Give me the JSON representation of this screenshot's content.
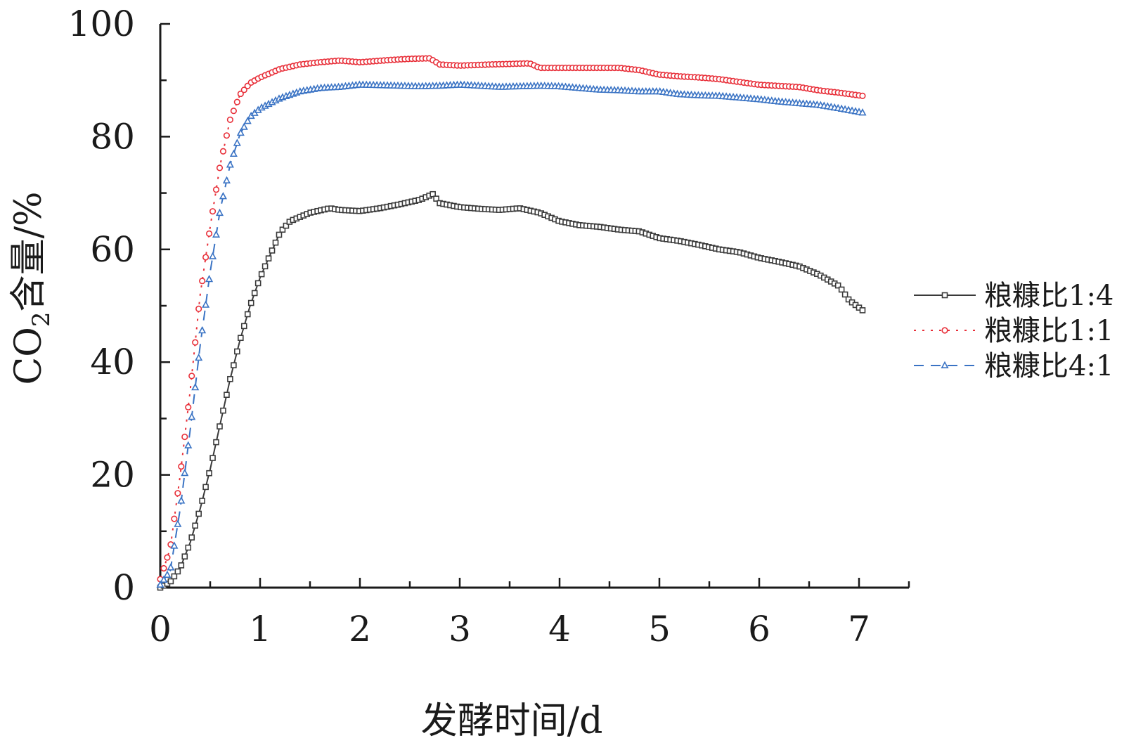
{
  "chart_data": {
    "type": "line",
    "xlabel": "发酵时间/d",
    "ylabel": {
      "prefix": "CO",
      "subscript": "2",
      "suffix": "含量/%"
    },
    "xlim": [
      0,
      7.5
    ],
    "ylim": [
      0,
      100
    ],
    "x_ticks": [
      0,
      1,
      2,
      3,
      4,
      5,
      6,
      7
    ],
    "y_ticks": [
      0,
      20,
      40,
      60,
      80,
      100
    ],
    "legend_position": "right",
    "grid": false,
    "series": [
      {
        "name": "粮糠比1:4",
        "color": "#3a3a3a",
        "marker": "square",
        "line_style": "solid",
        "points": [
          [
            0,
            0
          ],
          [
            0.1,
            1
          ],
          [
            0.2,
            3.5
          ],
          [
            0.3,
            8
          ],
          [
            0.4,
            14
          ],
          [
            0.5,
            21
          ],
          [
            0.6,
            29
          ],
          [
            0.7,
            37
          ],
          [
            0.8,
            44
          ],
          [
            0.9,
            50
          ],
          [
            1.0,
            55
          ],
          [
            1.1,
            59
          ],
          [
            1.2,
            63
          ],
          [
            1.3,
            65
          ],
          [
            1.5,
            66.5
          ],
          [
            1.7,
            67.3
          ],
          [
            1.8,
            67
          ],
          [
            2.0,
            66.8
          ],
          [
            2.2,
            67.3
          ],
          [
            2.4,
            68
          ],
          [
            2.6,
            68.8
          ],
          [
            2.73,
            69.8
          ],
          [
            2.8,
            68.2
          ],
          [
            3.0,
            67.5
          ],
          [
            3.2,
            67.2
          ],
          [
            3.4,
            67
          ],
          [
            3.6,
            67.3
          ],
          [
            3.8,
            66.5
          ],
          [
            4.0,
            65
          ],
          [
            4.2,
            64.3
          ],
          [
            4.4,
            64
          ],
          [
            4.6,
            63.5
          ],
          [
            4.8,
            63.2
          ],
          [
            5.0,
            62
          ],
          [
            5.2,
            61.5
          ],
          [
            5.4,
            60.8
          ],
          [
            5.6,
            60
          ],
          [
            5.8,
            59.5
          ],
          [
            6.0,
            58.5
          ],
          [
            6.2,
            57.8
          ],
          [
            6.4,
            57
          ],
          [
            6.6,
            55.5
          ],
          [
            6.8,
            53.5
          ],
          [
            6.9,
            51
          ],
          [
            7.05,
            49
          ]
        ]
      },
      {
        "name": "粮糠比1:1",
        "color": "#e8303a",
        "marker": "circle",
        "line_style": "dotted",
        "points": [
          [
            0,
            1.5
          ],
          [
            0.1,
            7
          ],
          [
            0.2,
            20
          ],
          [
            0.3,
            35
          ],
          [
            0.4,
            52
          ],
          [
            0.5,
            64
          ],
          [
            0.6,
            75
          ],
          [
            0.7,
            83
          ],
          [
            0.8,
            87.5
          ],
          [
            0.9,
            89.5
          ],
          [
            1.0,
            90.5
          ],
          [
            1.2,
            92
          ],
          [
            1.4,
            92.8
          ],
          [
            1.6,
            93.2
          ],
          [
            1.8,
            93.5
          ],
          [
            2.0,
            93.2
          ],
          [
            2.3,
            93.6
          ],
          [
            2.5,
            93.8
          ],
          [
            2.7,
            93.9
          ],
          [
            2.8,
            92.8
          ],
          [
            3.0,
            92.6
          ],
          [
            3.3,
            92.8
          ],
          [
            3.5,
            92.9
          ],
          [
            3.7,
            93
          ],
          [
            3.8,
            92.2
          ],
          [
            4.0,
            92.2
          ],
          [
            4.3,
            92.2
          ],
          [
            4.6,
            92.2
          ],
          [
            4.8,
            91.8
          ],
          [
            5.0,
            91
          ],
          [
            5.2,
            90.7
          ],
          [
            5.4,
            90.5
          ],
          [
            5.6,
            90.2
          ],
          [
            5.8,
            89.7
          ],
          [
            6.0,
            89.2
          ],
          [
            6.2,
            89
          ],
          [
            6.4,
            88.8
          ],
          [
            6.6,
            88.2
          ],
          [
            6.8,
            87.8
          ],
          [
            7.05,
            87.2
          ]
        ]
      },
      {
        "name": "粮糠比4:1",
        "color": "#3a73c4",
        "marker": "triangle",
        "line_style": "dashed",
        "points": [
          [
            0,
            0.5
          ],
          [
            0.1,
            3
          ],
          [
            0.2,
            14
          ],
          [
            0.3,
            28
          ],
          [
            0.4,
            43
          ],
          [
            0.5,
            56
          ],
          [
            0.6,
            67
          ],
          [
            0.7,
            75
          ],
          [
            0.8,
            80.5
          ],
          [
            0.9,
            83.5
          ],
          [
            1.0,
            85
          ],
          [
            1.2,
            86.8
          ],
          [
            1.4,
            88
          ],
          [
            1.6,
            88.6
          ],
          [
            1.8,
            88.8
          ],
          [
            2.0,
            89.2
          ],
          [
            2.2,
            89.1
          ],
          [
            2.4,
            89
          ],
          [
            2.6,
            88.9
          ],
          [
            2.8,
            89
          ],
          [
            3.0,
            89.2
          ],
          [
            3.2,
            89
          ],
          [
            3.4,
            88.8
          ],
          [
            3.6,
            88.9
          ],
          [
            3.8,
            89
          ],
          [
            4.0,
            88.9
          ],
          [
            4.2,
            88.6
          ],
          [
            4.4,
            88.3
          ],
          [
            4.6,
            88.2
          ],
          [
            4.8,
            88
          ],
          [
            5.0,
            88
          ],
          [
            5.2,
            87.5
          ],
          [
            5.4,
            87.3
          ],
          [
            5.6,
            87.2
          ],
          [
            5.8,
            86.9
          ],
          [
            6.0,
            86.6
          ],
          [
            6.2,
            86.2
          ],
          [
            6.4,
            85.9
          ],
          [
            6.6,
            85.6
          ],
          [
            6.8,
            85
          ],
          [
            7.05,
            84.2
          ]
        ]
      }
    ]
  }
}
